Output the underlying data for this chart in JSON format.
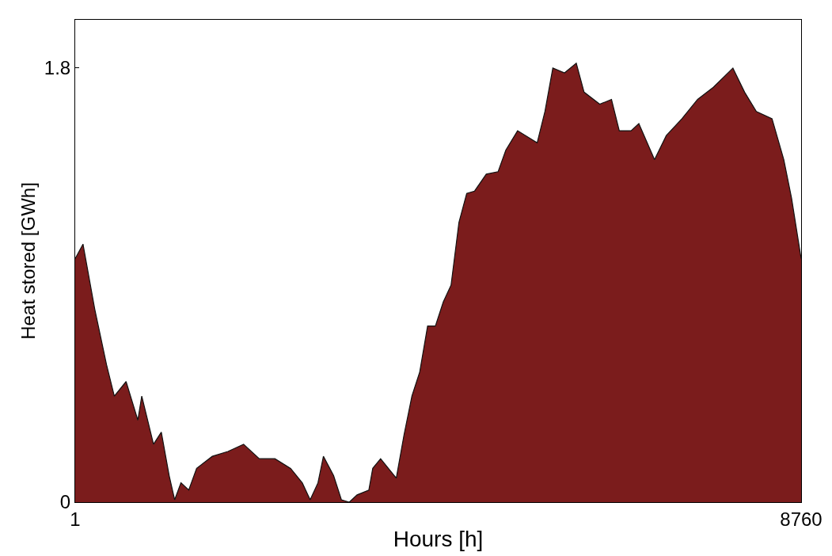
{
  "chart_data": {
    "type": "area",
    "xlabel": "Hours [h]",
    "ylabel": "Heat stored [GWh]",
    "x": [
      1,
      95,
      237,
      379,
      473,
      615,
      757,
      804,
      946,
      1040,
      1135,
      1201,
      1277,
      1371,
      1466,
      1655,
      1844,
      2033,
      2222,
      2411,
      2600,
      2741,
      2836,
      2930,
      2996,
      3119,
      3213,
      3308,
      3402,
      3544,
      3591,
      3686,
      3780,
      3875,
      3969,
      4064,
      4158,
      4253,
      4347,
      4442,
      4536,
      4631,
      4725,
      4820,
      4961,
      5103,
      5197,
      5339,
      5575,
      5669,
      5764,
      5905,
      6047,
      6141,
      6330,
      6472,
      6566,
      6708,
      6802,
      6991,
      7133,
      7322,
      7511,
      7700,
      7937,
      8078,
      8220,
      8409,
      8551,
      8645,
      8760
    ],
    "series": [
      {
        "color": "#7b1c1c",
        "values": [
          1.01,
          1.07,
          0.8,
          0.57,
          0.44,
          0.5,
          0.34,
          0.44,
          0.24,
          0.29,
          0.11,
          0.01,
          0.08,
          0.05,
          0.14,
          0.19,
          0.21,
          0.24,
          0.18,
          0.18,
          0.14,
          0.08,
          0.01,
          0.08,
          0.19,
          0.11,
          0.01,
          0,
          0.03,
          0.05,
          0.14,
          0.18,
          0.14,
          0.1,
          0.28,
          0.44,
          0.54,
          0.73,
          0.73,
          0.83,
          0.9,
          1.16,
          1.28,
          1.29,
          1.36,
          1.37,
          1.46,
          1.54,
          1.49,
          1.62,
          1.8,
          1.78,
          1.82,
          1.7,
          1.65,
          1.67,
          1.54,
          1.54,
          1.57,
          1.42,
          1.52,
          1.59,
          1.67,
          1.72,
          1.8,
          1.7,
          1.62,
          1.59,
          1.42,
          1.26,
          1.01
        ]
      }
    ],
    "xlim": [
      1,
      8760
    ],
    "xticks": [
      1,
      8760
    ],
    "ylim": [
      0,
      2
    ],
    "yticks": [
      0,
      1.8
    ]
  }
}
